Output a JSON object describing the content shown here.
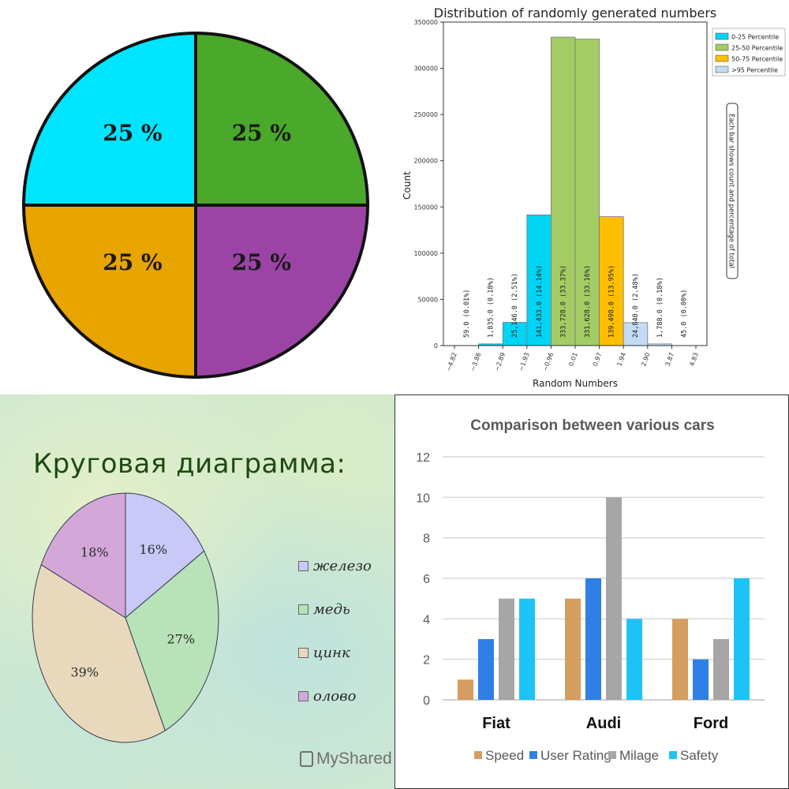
{
  "chart_data": [
    {
      "type": "pie",
      "labels": [
        "25 %",
        "25 %",
        "25 %",
        "25 %"
      ],
      "values": [
        25,
        25,
        25,
        25
      ],
      "colors": [
        "#00e5ff",
        "#4aa82a",
        "#e8a400",
        "#9b44a6"
      ]
    },
    {
      "type": "bar",
      "title": "Distribution of randomly generated numbers",
      "xlabel": "Random Numbers",
      "ylabel": "Count",
      "ylim": [
        0,
        350000
      ],
      "y_ticks": [
        "0",
        "50000",
        "100000",
        "150000",
        "200000",
        "250000",
        "300000",
        "350000"
      ],
      "x_ticks": [
        "−4.82",
        "−3.86",
        "−2.89",
        "−1.93",
        "−0.96",
        "0.01",
        "0.97",
        "1.94",
        "2.90",
        "3.87",
        "4.83"
      ],
      "bins": [
        {
          "label": "59.0  (0.01%)",
          "value": 59,
          "series": 0
        },
        {
          "label": "1,835.0  (0.18%)",
          "value": 1835,
          "series": 0
        },
        {
          "label": "25,146.0  (2.51%)",
          "value": 25146,
          "series": 0
        },
        {
          "label": "141,433.0  (14.14%)",
          "value": 141433,
          "series": 0
        },
        {
          "label": "333,728.0  (33.37%)",
          "value": 333728,
          "series": 1
        },
        {
          "label": "331,628.0  (33.16%)",
          "value": 331628,
          "series": 1
        },
        {
          "label": "139,498.0  (13.95%)",
          "value": 139498,
          "series": 2
        },
        {
          "label": "24,840.0  (2.48%)",
          "value": 24840,
          "series": 3
        },
        {
          "label": "1,788.0  (0.18%)",
          "value": 1788,
          "series": 3
        },
        {
          "label": "45.0  (0.00%)",
          "value": 45,
          "series": 3
        }
      ],
      "legend": [
        "0-25 Percentile",
        "25-50 Percentile",
        "50-75 Percentile",
        ">95 Percentile"
      ],
      "legend_position": "top-right",
      "colors": [
        "#00d4f5",
        "#a4cc64",
        "#ffbf00",
        "#c2dcf5"
      ],
      "annotation": "Each bar shows count and percentage of total"
    },
    {
      "type": "pie",
      "title": "Круговая диаграмма:",
      "labels": [
        "железо",
        "медь",
        "цинк",
        "олово"
      ],
      "values": [
        16,
        27,
        39,
        18
      ],
      "value_labels": [
        "16%",
        "27%",
        "39%",
        "18%"
      ],
      "colors": [
        "#c9c9f7",
        "#b8e2b8",
        "#e8d9bd",
        "#d3a8d8"
      ],
      "legend_position": "right"
    },
    {
      "type": "bar",
      "title": "Comparison between various cars",
      "categories": [
        "Fiat",
        "Audi",
        "Ford"
      ],
      "series": [
        {
          "name": "Speed",
          "values": [
            1,
            5,
            4
          ]
        },
        {
          "name": "User Rating",
          "values": [
            3,
            6,
            2
          ]
        },
        {
          "name": "Milage",
          "values": [
            5,
            10,
            3
          ]
        },
        {
          "name": "Safety",
          "values": [
            5,
            4,
            6
          ]
        }
      ],
      "y_ticks": [
        "0",
        "2",
        "4",
        "6",
        "8",
        "10",
        "12"
      ],
      "ylim": [
        0,
        12
      ],
      "grid": true,
      "legend_position": "bottom",
      "colors": [
        "#d59e5f",
        "#2f7fe6",
        "#a6a6a6",
        "#1ec3f6"
      ]
    }
  ],
  "watermark": "MyShared"
}
